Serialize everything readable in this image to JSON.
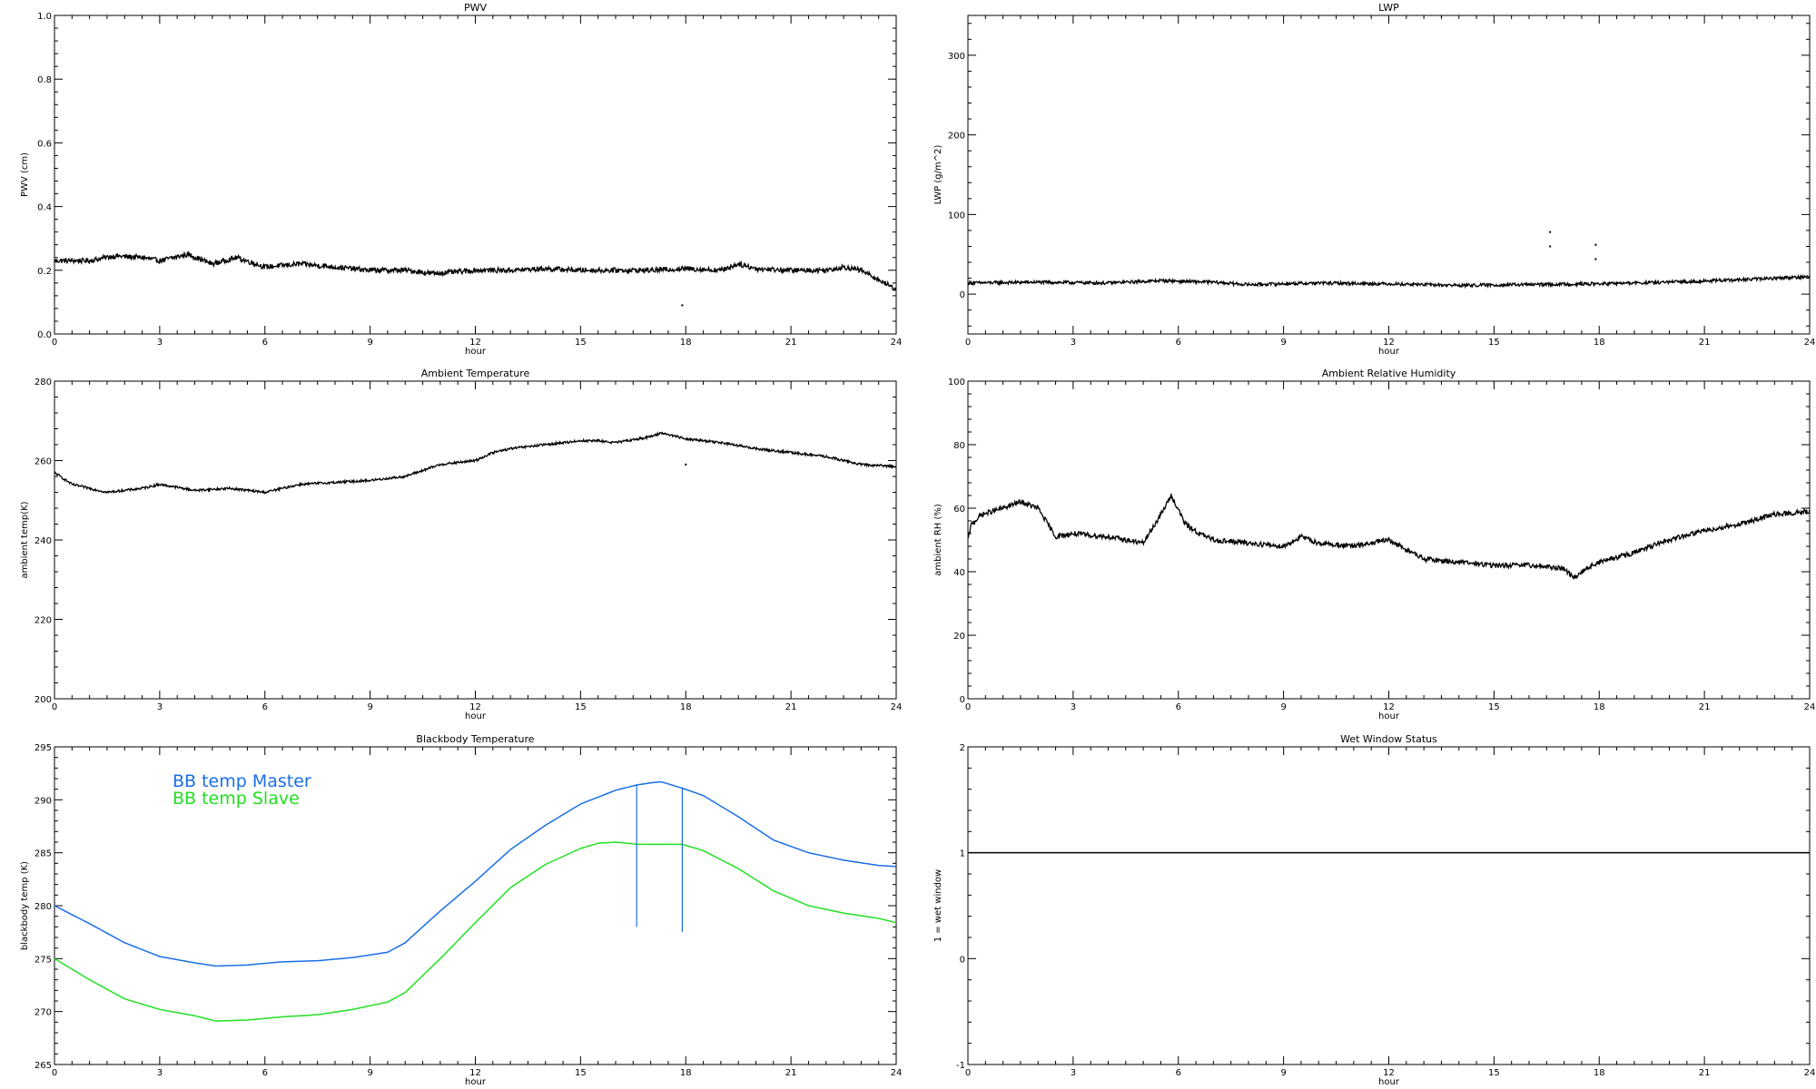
{
  "chart_data": [
    {
      "type": "line",
      "title": "PWV",
      "xlabel": "hour",
      "ylabel": "PWV (cm)",
      "xlim": [
        0,
        24
      ],
      "ylim": [
        0.0,
        1.0
      ],
      "xticks": [
        0,
        3,
        6,
        9,
        12,
        15,
        18,
        21,
        24
      ],
      "yticks": [
        "0.0",
        "0.2",
        "0.4",
        "0.6",
        "0.8",
        "1.0"
      ],
      "series": [
        {
          "color": "#000000",
          "noise": 0.008,
          "x": [
            0,
            1,
            1.7,
            2.5,
            3,
            3.8,
            4.5,
            5.2,
            6,
            7,
            8,
            9,
            10,
            10.8,
            11.5,
            12,
            13,
            14,
            15,
            16,
            17,
            18,
            19,
            19.5,
            20,
            21,
            22,
            22.5,
            23,
            23.5,
            24
          ],
          "y": [
            0.23,
            0.23,
            0.245,
            0.24,
            0.23,
            0.25,
            0.22,
            0.24,
            0.21,
            0.22,
            0.21,
            0.2,
            0.2,
            0.19,
            0.195,
            0.2,
            0.2,
            0.205,
            0.2,
            0.2,
            0.2,
            0.205,
            0.2,
            0.22,
            0.205,
            0.2,
            0.2,
            0.21,
            0.2,
            0.17,
            0.14
          ]
        }
      ],
      "points": [
        [
          17.9,
          0.09
        ]
      ]
    },
    {
      "type": "line",
      "title": "LWP",
      "xlabel": "hour",
      "ylabel": "LWP (g/m^2)",
      "xlim": [
        0,
        24
      ],
      "ylim": [
        -50,
        350
      ],
      "xticks": [
        0,
        3,
        6,
        9,
        12,
        15,
        18,
        21,
        24
      ],
      "yticks": [
        "0",
        "100",
        "200",
        "300"
      ],
      "series": [
        {
          "color": "#000000",
          "noise": 2,
          "x": [
            0,
            2,
            4,
            5.5,
            7,
            8,
            10,
            12,
            14,
            16,
            18,
            20,
            22,
            23,
            24
          ],
          "y": [
            14,
            15,
            14,
            17,
            15,
            12,
            14,
            13,
            11,
            12,
            13,
            15,
            18,
            20,
            22
          ]
        }
      ],
      "points": [
        [
          16.6,
          78
        ],
        [
          16.6,
          60
        ],
        [
          17.9,
          62
        ],
        [
          17.9,
          44
        ]
      ]
    },
    {
      "type": "line",
      "title": "Ambient Temperature",
      "xlabel": "hour",
      "ylabel": "ambient temp(K)",
      "xlim": [
        0,
        24
      ],
      "ylim": [
        200,
        280
      ],
      "xticks": [
        0,
        3,
        6,
        9,
        12,
        15,
        18,
        21,
        24
      ],
      "yticks": [
        "200",
        "220",
        "240",
        "260",
        "280"
      ],
      "series": [
        {
          "color": "#000000",
          "noise": 0.3,
          "x": [
            0,
            0.5,
            1.5,
            2.5,
            3,
            4,
            5,
            6,
            7,
            8,
            9,
            10,
            11,
            12,
            12.5,
            13,
            14,
            15,
            15.5,
            16,
            17,
            17.3,
            18,
            19,
            20,
            21,
            22,
            23,
            24
          ],
          "y": [
            257,
            254,
            252,
            253,
            254,
            252.5,
            253,
            252,
            254,
            254.5,
            255,
            256,
            259,
            260,
            262,
            263,
            264,
            265,
            265,
            264.5,
            266,
            267,
            265.5,
            264.5,
            263,
            262,
            261,
            259,
            258.5
          ]
        }
      ],
      "points": [
        [
          18.0,
          259
        ]
      ]
    },
    {
      "type": "line",
      "title": "Ambient Relative Humidity",
      "xlabel": "hour",
      "ylabel": "ambient RH (%)",
      "xlim": [
        0,
        24
      ],
      "ylim": [
        0,
        100
      ],
      "xticks": [
        0,
        3,
        6,
        9,
        12,
        15,
        18,
        21,
        24
      ],
      "yticks": [
        "0",
        "20",
        "40",
        "60",
        "80",
        "100"
      ],
      "series": [
        {
          "color": "#000000",
          "noise": 0.8,
          "x": [
            0,
            0.1,
            0.4,
            1,
            1.5,
            2,
            2.5,
            3,
            4,
            5,
            5.5,
            5.8,
            6.2,
            6.6,
            7,
            8,
            9,
            9.5,
            10,
            11,
            11.5,
            12,
            12.5,
            13,
            14,
            15,
            16,
            17,
            17.3,
            17.6,
            18,
            19,
            20,
            21,
            22,
            23,
            24
          ],
          "y": [
            50,
            55,
            58,
            60,
            62,
            60,
            51,
            52,
            51,
            49,
            58,
            64,
            55,
            52,
            50,
            49,
            48,
            51,
            49,
            48,
            49,
            50,
            47,
            44,
            43,
            42,
            42,
            41,
            38,
            41,
            43,
            46,
            50,
            53,
            55,
            58,
            59
          ]
        }
      ],
      "points": []
    },
    {
      "type": "line",
      "title": "Blackbody Temperature",
      "xlabel": "hour",
      "ylabel": "blackbody temp (K)",
      "xlim": [
        0,
        24
      ],
      "ylim": [
        265,
        295
      ],
      "xticks": [
        0,
        3,
        6,
        9,
        12,
        15,
        18,
        21,
        24
      ],
      "yticks": [
        "265",
        "270",
        "275",
        "280",
        "285",
        "290",
        "295"
      ],
      "series": [
        {
          "name": "BB temp Master",
          "color": "#1a6ee8",
          "noise": 0,
          "x": [
            0,
            1,
            2,
            3,
            4,
            4.6,
            5.5,
            6.5,
            7.5,
            8.5,
            9.5,
            10,
            11,
            12,
            13,
            14,
            15,
            16,
            16.6,
            17,
            17.3,
            17.9,
            18.5,
            19.5,
            20.5,
            21.5,
            22.5,
            23.5,
            24
          ],
          "y": [
            280,
            278.3,
            276.5,
            275.2,
            274.6,
            274.3,
            274.4,
            274.7,
            274.8,
            275.1,
            275.6,
            276.5,
            279.5,
            282.3,
            285.3,
            287.6,
            289.6,
            290.9,
            291.4,
            291.6,
            291.7,
            291.1,
            290.4,
            288.4,
            286.2,
            285,
            284.3,
            283.8,
            283.7
          ]
        },
        {
          "name": "BB temp Slave",
          "color": "#22e022",
          "noise": 0,
          "x": [
            0,
            1,
            2,
            3,
            4,
            4.6,
            5.5,
            6.5,
            7.5,
            8.5,
            9.5,
            10,
            11,
            12,
            13,
            14,
            15,
            15.5,
            16,
            16.6,
            17,
            17.9,
            18.5,
            19.5,
            20.5,
            21.5,
            22.5,
            23.5,
            24
          ],
          "y": [
            275,
            273,
            271.2,
            270.2,
            269.6,
            269.1,
            269.2,
            269.5,
            269.7,
            270.2,
            270.9,
            271.8,
            275,
            278.4,
            281.7,
            283.9,
            285.4,
            285.9,
            286,
            285.8,
            285.8,
            285.8,
            285.2,
            283.5,
            281.4,
            280,
            279.3,
            278.8,
            278.4
          ]
        }
      ],
      "spikes": [
        {
          "x": 16.6,
          "y1": 291.4,
          "y2": 278,
          "color": "#1a6ee8"
        },
        {
          "x": 17.9,
          "y1": 291.1,
          "y2": 277.5,
          "color": "#1a6ee8"
        }
      ],
      "legend_position": "top-left",
      "points": []
    },
    {
      "type": "line",
      "title": "Wet Window Status",
      "xlabel": "hour",
      "ylabel": "1 = wet window",
      "xlim": [
        0,
        24
      ],
      "ylim": [
        -1,
        2
      ],
      "xticks": [
        0,
        3,
        6,
        9,
        12,
        15,
        18,
        21,
        24
      ],
      "yticks": [
        "-1",
        "0",
        "1",
        "2"
      ],
      "series": [
        {
          "color": "#000000",
          "noise": 0,
          "x": [
            0,
            24
          ],
          "y": [
            1,
            1
          ]
        }
      ],
      "points": []
    }
  ]
}
